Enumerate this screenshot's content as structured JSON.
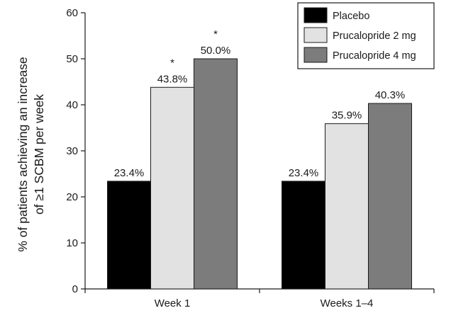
{
  "chart_data": {
    "type": "bar",
    "categories": [
      "Week 1",
      "Weeks 1–4"
    ],
    "series": [
      {
        "name": "Placebo",
        "values": [
          23.4,
          23.4
        ],
        "labels": [
          "23.4%",
          "23.4%"
        ],
        "markers": [
          "",
          ""
        ],
        "color": "#000000"
      },
      {
        "name": "Prucalopride 2 mg",
        "values": [
          43.8,
          35.9
        ],
        "labels": [
          "43.8%",
          "35.9%"
        ],
        "markers": [
          "*",
          ""
        ],
        "color": "#e2e2e2"
      },
      {
        "name": "Prucalopride 4 mg",
        "values": [
          50.0,
          40.3
        ],
        "labels": [
          "50.0%",
          "40.3%"
        ],
        "markers": [
          "*",
          ""
        ],
        "color": "#7c7c7c"
      }
    ],
    "ylabel": [
      "% of patients achieving an increase",
      "of ≥1 SCBM per week"
    ],
    "xlabel": "",
    "ylim": [
      0,
      60
    ],
    "yticks": [
      0,
      10,
      20,
      30,
      40,
      50,
      60
    ],
    "grid": false,
    "legend_position": "top-right"
  }
}
